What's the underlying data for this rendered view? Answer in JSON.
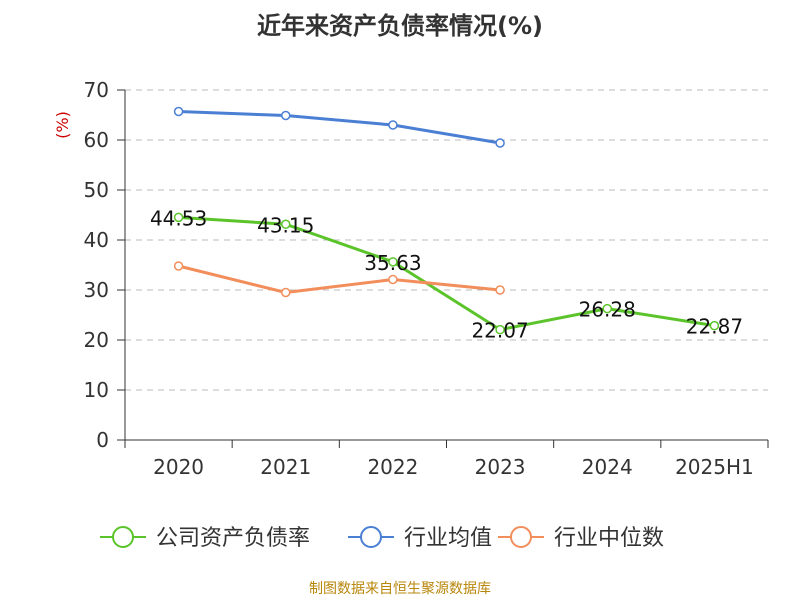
{
  "chart_data": {
    "type": "line",
    "title": "近年来资产负债率情况(%)",
    "ylabel": "(%)",
    "xlabel": "",
    "categories": [
      "2020",
      "2021",
      "2022",
      "2023",
      "2024",
      "2025H1"
    ],
    "ylim": [
      0,
      70
    ],
    "yticks": [
      0,
      10,
      20,
      30,
      40,
      50,
      60,
      70
    ],
    "grid": true,
    "legend_position": "bottom",
    "series": [
      {
        "name": "公司资产负债率",
        "color": "#5bc42a",
        "values": [
          44.53,
          43.15,
          35.63,
          22.07,
          26.28,
          22.87
        ],
        "labels": [
          "44.53",
          "43.15",
          "35.63",
          "22.07",
          "26.28",
          "22.87"
        ]
      },
      {
        "name": "行业均值",
        "color": "#4a7fd4",
        "values": [
          65.7,
          64.9,
          63.0,
          59.4,
          null,
          null
        ]
      },
      {
        "name": "行业中位数",
        "color": "#f28e5b",
        "values": [
          34.8,
          29.5,
          32.1,
          30.0,
          null,
          null
        ]
      }
    ]
  },
  "source_text": "制图数据来自恒生聚源数据库"
}
